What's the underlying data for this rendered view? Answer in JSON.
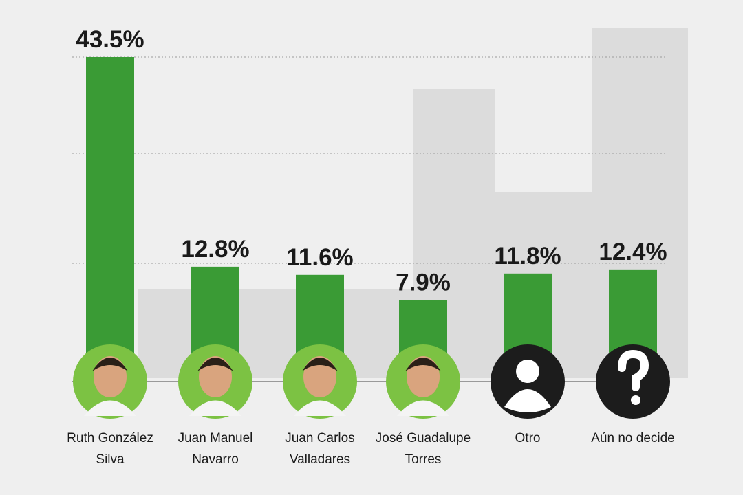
{
  "chart_data": {
    "type": "bar",
    "categories": [
      "Ruth González Silva",
      "Juan Manuel Navarro",
      "Juan Carlos Valladares",
      "José Guadalupe Torres",
      "Otro",
      "Aún no decide"
    ],
    "values": [
      43.5,
      12.8,
      11.6,
      7.9,
      11.8,
      12.4
    ],
    "value_labels": [
      "43.5%",
      "12.8%",
      "11.6%",
      "7.9%",
      "11.8%",
      "12.4%"
    ],
    "color": "#3a9b35"
  }
}
